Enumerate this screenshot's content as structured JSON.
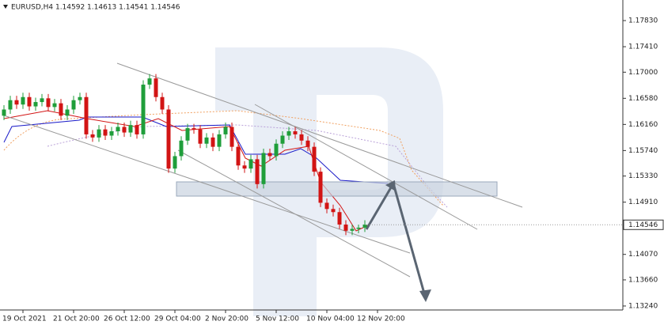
{
  "chart_data": {
    "type": "candlestick",
    "title": "EURUSD,H4  1.14592 1.14613 1.14541 1.14546",
    "open": [
      1.163,
      1.164,
      1.1655,
      1.1648,
      1.166,
      1.1645,
      1.1652,
      1.1658,
      1.1644,
      1.165,
      1.163,
      1.164,
      1.1655,
      1.166,
      1.16,
      1.1595,
      1.1608,
      1.1598,
      1.1605,
      1.1612,
      1.1603,
      1.1615,
      1.16,
      1.168,
      1.169,
      1.166,
      1.164,
      1.1545,
      1.1565,
      1.159,
      1.161,
      1.1608,
      1.1585,
      1.1595,
      1.158,
      1.16,
      1.1612,
      1.158,
      1.155,
      1.1545,
      1.156,
      1.152,
      1.157,
      1.1565,
      1.1585,
      1.1598,
      1.1605,
      1.16,
      1.159,
      1.158,
      1.154,
      1.149,
      1.148,
      1.1475,
      1.1455,
      1.1445,
      1.1448,
      1.145
    ],
    "high": [
      1.1647,
      1.1662,
      1.1662,
      1.1667,
      1.1667,
      1.1659,
      1.1665,
      1.1665,
      1.1657,
      1.1657,
      1.1647,
      1.1662,
      1.1667,
      1.1667,
      1.1607,
      1.1615,
      1.1615,
      1.1612,
      1.1619,
      1.1619,
      1.1622,
      1.1622,
      1.1687,
      1.1697,
      1.1697,
      1.1667,
      1.1647,
      1.1572,
      1.1597,
      1.1617,
      1.1617,
      1.1615,
      1.1602,
      1.1602,
      1.1607,
      1.1619,
      1.1619,
      1.1587,
      1.1557,
      1.1567,
      1.1567,
      1.1577,
      1.1577,
      1.1592,
      1.1605,
      1.1612,
      1.1612,
      1.1607,
      1.1597,
      1.1587,
      1.1547,
      1.1497,
      1.1487,
      1.1482,
      1.1462,
      1.1455,
      1.1455,
      1.1462
    ],
    "low": [
      1.1623,
      1.1633,
      1.1641,
      1.1641,
      1.1638,
      1.1638,
      1.1645,
      1.1637,
      1.1637,
      1.1623,
      1.1623,
      1.1633,
      1.1648,
      1.1593,
      1.1588,
      1.1588,
      1.1591,
      1.1591,
      1.1598,
      1.1596,
      1.1596,
      1.1593,
      1.1593,
      1.1673,
      1.1653,
      1.1633,
      1.1538,
      1.1538,
      1.1558,
      1.1583,
      1.1601,
      1.1578,
      1.1578,
      1.1573,
      1.1573,
      1.1593,
      1.1573,
      1.1543,
      1.1538,
      1.1538,
      1.1513,
      1.1513,
      1.1558,
      1.1558,
      1.1578,
      1.1591,
      1.1593,
      1.1583,
      1.1573,
      1.1533,
      1.1483,
      1.1473,
      1.1468,
      1.1448,
      1.1438,
      1.1438,
      1.1441,
      1.1443
    ],
    "close": [
      1.164,
      1.1655,
      1.1648,
      1.166,
      1.1645,
      1.1652,
      1.1658,
      1.1644,
      1.165,
      1.163,
      1.164,
      1.1655,
      1.166,
      1.16,
      1.1595,
      1.1608,
      1.1598,
      1.1605,
      1.1612,
      1.1603,
      1.1615,
      1.16,
      1.168,
      1.169,
      1.166,
      1.164,
      1.1545,
      1.1565,
      1.159,
      1.161,
      1.1608,
      1.1585,
      1.1595,
      1.158,
      1.16,
      1.1612,
      1.158,
      1.155,
      1.1545,
      1.156,
      1.152,
      1.157,
      1.1565,
      1.1585,
      1.1598,
      1.1605,
      1.16,
      1.159,
      1.158,
      1.154,
      1.149,
      1.148,
      1.1475,
      1.1455,
      1.1445,
      1.1448,
      1.145,
      1.1455
    ],
    "up_color": "#1f9e3a",
    "down_color": "#d21414",
    "xlim": [
      -0.625,
      97.75
    ],
    "xticks": [
      {
        "value": 3,
        "label": "19 Oct 2021"
      },
      {
        "value": 11,
        "label": "21 Oct 20:00"
      },
      {
        "value": 19,
        "label": "26 Oct 12:00"
      },
      {
        "value": 27,
        "label": "29 Oct 04:00"
      },
      {
        "value": 35,
        "label": "2 Nov 20:00"
      },
      {
        "value": 43,
        "label": "5 Nov 12:00"
      },
      {
        "value": 51,
        "label": "10 Nov 04:00"
      },
      {
        "value": 59,
        "label": "12 Nov 20:00"
      }
    ],
    "ylim": [
      1.13176,
      1.18161
    ],
    "yticks": [
      {
        "value": 1.1783,
        "label": "1.17830"
      },
      {
        "value": 1.1741,
        "label": "1.17410"
      },
      {
        "value": 1.17,
        "label": "1.17000"
      },
      {
        "value": 1.1658,
        "label": "1.16580"
      },
      {
        "value": 1.1616,
        "label": "1.16160"
      },
      {
        "value": 1.1574,
        "label": "1.15740"
      },
      {
        "value": 1.1533,
        "label": "1.15330"
      },
      {
        "value": 1.1491,
        "label": "1.14910"
      },
      {
        "value": 1.1407,
        "label": "1.14070"
      },
      {
        "value": 1.1366,
        "label": "1.13660"
      },
      {
        "value": 1.1324,
        "label": "1.13240"
      }
    ],
    "current_price": {
      "value": 1.14546,
      "label": "1.14546"
    }
  }
}
